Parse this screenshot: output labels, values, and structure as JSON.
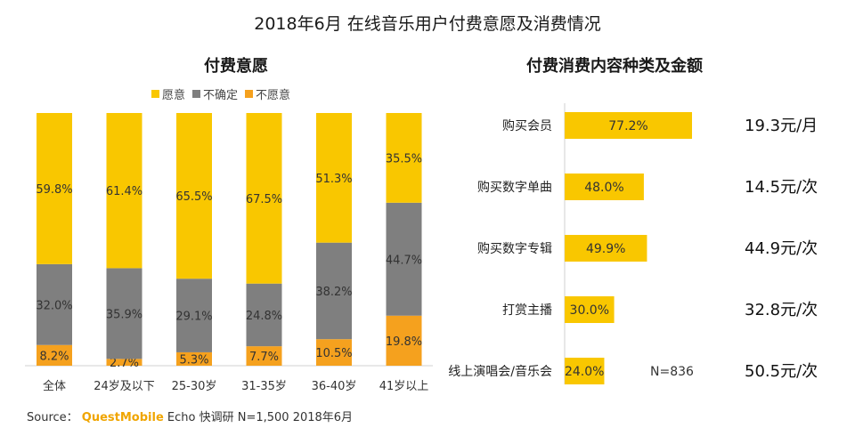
{
  "title": "2018年6月 在线音乐用户付费意愿及消费情况",
  "colors": {
    "yes": "#f9c700",
    "unsure": "#7f7f7f",
    "no": "#f5a11e",
    "bar": "#f9c700"
  },
  "source": {
    "prefix": "Source：",
    "brand": "QuestMobile",
    "suffix": "Echo 快调研 N=1,500 2018年6月"
  },
  "left_chart_title": "付费意愿",
  "right_chart_title": "付费消费内容种类及金额",
  "legend": [
    {
      "label": "愿意",
      "color": "#f9c700"
    },
    {
      "label": "不确定",
      "color": "#7f7f7f"
    },
    {
      "label": "不愿意",
      "color": "#f5a11e"
    }
  ],
  "chart_data": [
    {
      "type": "bar",
      "stacked": true,
      "title": "付费意愿",
      "categories": [
        "全体",
        "24岁及以下",
        "25-30岁",
        "31-35岁",
        "36-40岁",
        "41岁以上"
      ],
      "series": [
        {
          "name": "愿意",
          "values": [
            59.8,
            61.4,
            65.5,
            67.5,
            51.3,
            35.5
          ],
          "labels": [
            "59.8%",
            "61.4%",
            "65.5%",
            "67.5%",
            "51.3%",
            "35.5%"
          ]
        },
        {
          "name": "不确定",
          "values": [
            32.0,
            35.9,
            29.1,
            24.8,
            38.2,
            44.7
          ],
          "labels": [
            "32.0%",
            "35.9%",
            "29.1%",
            "24.8%",
            "38.2%",
            "44.7%"
          ]
        },
        {
          "name": "不愿意",
          "values": [
            8.2,
            2.7,
            5.3,
            7.7,
            10.5,
            19.8
          ],
          "labels": [
            "8.2%",
            "2.7%",
            "5.3%",
            "7.7%",
            "10.5%",
            "19.8%"
          ]
        }
      ],
      "legend_position": "top"
    },
    {
      "type": "bar",
      "orientation": "horizontal",
      "title": "付费消费内容种类及金额",
      "categories": [
        "购买会员",
        "购买数字单曲",
        "购买数字专辑",
        "打赏主播",
        "线上演唱会/音乐会"
      ],
      "values": [
        77.2,
        48.0,
        49.9,
        30.0,
        24.0
      ],
      "labels": [
        "77.2%",
        "48.0%",
        "49.9%",
        "30.0%",
        "24.0%"
      ],
      "amounts": [
        "19.3元/月",
        "14.5元/次",
        "44.9元/次",
        "32.8元/次",
        "50.5元/次"
      ],
      "note": "N=836"
    }
  ]
}
